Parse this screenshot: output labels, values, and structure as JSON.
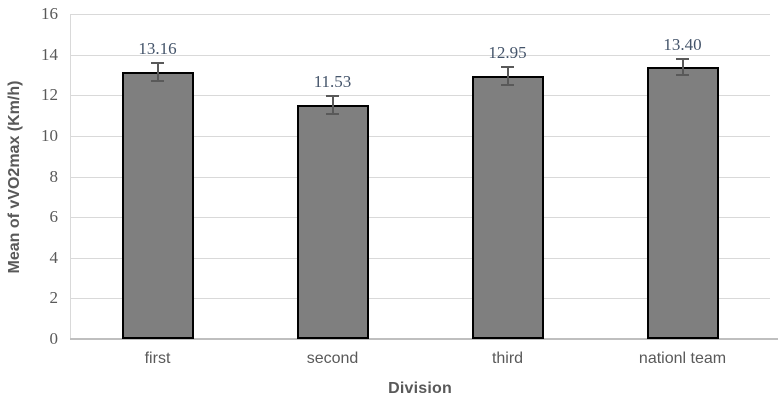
{
  "chart_data": {
    "type": "bar",
    "title": "",
    "categories": [
      "first",
      "second",
      "third",
      "nationl team"
    ],
    "values": [
      13.16,
      11.53,
      12.95,
      13.4
    ],
    "data_labels": [
      "13.16",
      "11.53",
      "12.95",
      "13.40"
    ],
    "error_bars": [
      0.45,
      0.45,
      0.45,
      0.4
    ],
    "xlabel": "Division",
    "ylabel": "Mean of vVO2max (Km/h)",
    "ylim": [
      0,
      16
    ],
    "yticks": [
      0,
      2,
      4,
      6,
      8,
      10,
      12,
      14,
      16
    ],
    "grid": true,
    "legend": "none",
    "colors": {
      "bar_fill": "#7F7F7F",
      "bar_border": "#000000",
      "gridline": "#D9D9D9",
      "axis_line": "#BFBFBF",
      "error_bar": "#595959",
      "axis_text": "#595959",
      "number_text": "#44546A"
    }
  }
}
